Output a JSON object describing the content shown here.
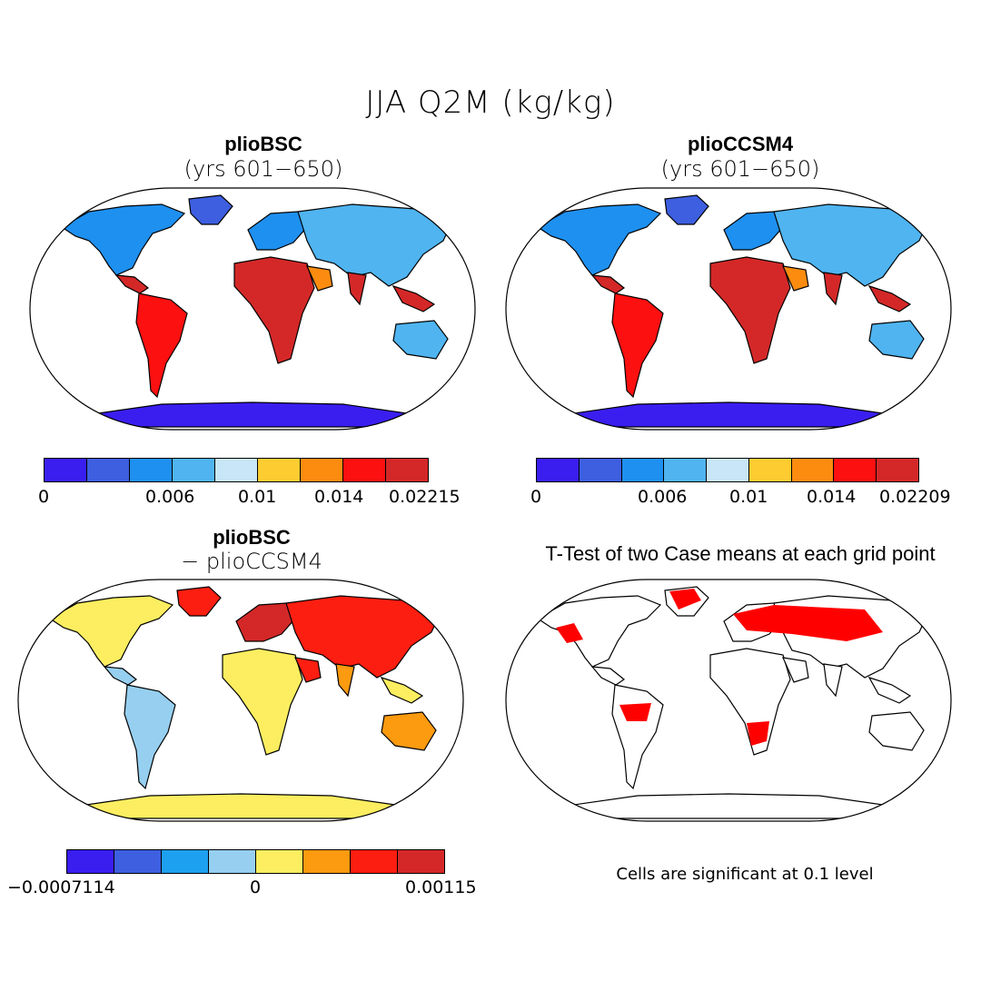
{
  "title": "JJA Q2M (kg/kg)",
  "panels": {
    "a": {
      "title": "plioBSC",
      "subtitle": "(yrs 601−650)"
    },
    "b": {
      "title": "plioCCSM4",
      "subtitle": "(yrs 601−650)"
    },
    "c": {
      "title": "plioBSC",
      "subtitle": "− plioCCSM4"
    },
    "d": {
      "title": "T-Test of two Case means at each grid point",
      "note": "Cells are significant at 0.1 level"
    }
  },
  "colorbars": {
    "abs_colors": [
      "#3a1ef0",
      "#3d5fe0",
      "#1e90f0",
      "#4fb4f0",
      "#c8e6f8",
      "#fccc30",
      "#fc8c10",
      "#fc1010",
      "#d42828"
    ],
    "diff_colors": [
      "#3a1ef0",
      "#3d5fe0",
      "#1ea0f0",
      "#96cff0",
      "#fcee60",
      "#fc9a10",
      "#fc1e10",
      "#d42828"
    ],
    "a_ticks": [
      "0",
      "0.006",
      "0.01",
      "0.014",
      "0.02215"
    ],
    "b_ticks": [
      "0",
      "0.006",
      "0.01",
      "0.014",
      "0.02209"
    ],
    "c_ticks": [
      "−0.0007114",
      "0",
      "0.00115"
    ]
  },
  "colors": {
    "ocean": "#ffffff",
    "coast": "#000000",
    "significant": "#ff0000"
  }
}
